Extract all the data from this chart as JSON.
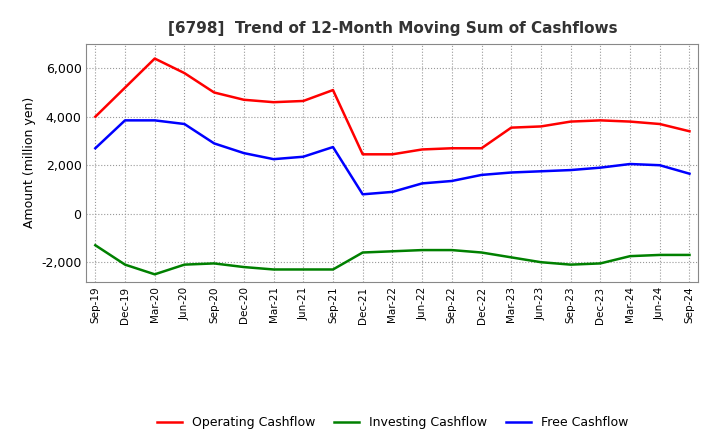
{
  "title": "[6798]  Trend of 12-Month Moving Sum of Cashflows",
  "ylabel": "Amount (million yen)",
  "x_labels": [
    "Sep-19",
    "Dec-19",
    "Mar-20",
    "Jun-20",
    "Sep-20",
    "Dec-20",
    "Mar-21",
    "Jun-21",
    "Sep-21",
    "Dec-21",
    "Mar-22",
    "Jun-22",
    "Sep-22",
    "Dec-22",
    "Mar-23",
    "Jun-23",
    "Sep-23",
    "Dec-23",
    "Mar-24",
    "Jun-24",
    "Sep-24"
  ],
  "operating": [
    4000,
    5200,
    6400,
    5800,
    5000,
    4700,
    4600,
    4650,
    5100,
    2450,
    2450,
    2650,
    2700,
    2700,
    3550,
    3600,
    3800,
    3850,
    3800,
    3700,
    3400
  ],
  "investing": [
    -1300,
    -2100,
    -2500,
    -2100,
    -2050,
    -2200,
    -2300,
    -2300,
    -2300,
    -1600,
    -1550,
    -1500,
    -1500,
    -1600,
    -1800,
    -2000,
    -2100,
    -2050,
    -1750,
    -1700,
    -1700
  ],
  "free": [
    2700,
    3850,
    3850,
    3700,
    2900,
    2500,
    2250,
    2350,
    2750,
    800,
    900,
    1250,
    1350,
    1600,
    1700,
    1750,
    1800,
    1900,
    2050,
    2000,
    1650
  ],
  "operating_color": "#FF0000",
  "investing_color": "#008000",
  "free_color": "#0000FF",
  "ylim": [
    -2800,
    7000
  ],
  "yticks": [
    -2000,
    0,
    2000,
    4000,
    6000
  ],
  "background_color": "#FFFFFF",
  "plot_bg_color": "#FFFFFF",
  "grid_color": "#999999",
  "legend_labels": [
    "Operating Cashflow",
    "Investing Cashflow",
    "Free Cashflow"
  ]
}
